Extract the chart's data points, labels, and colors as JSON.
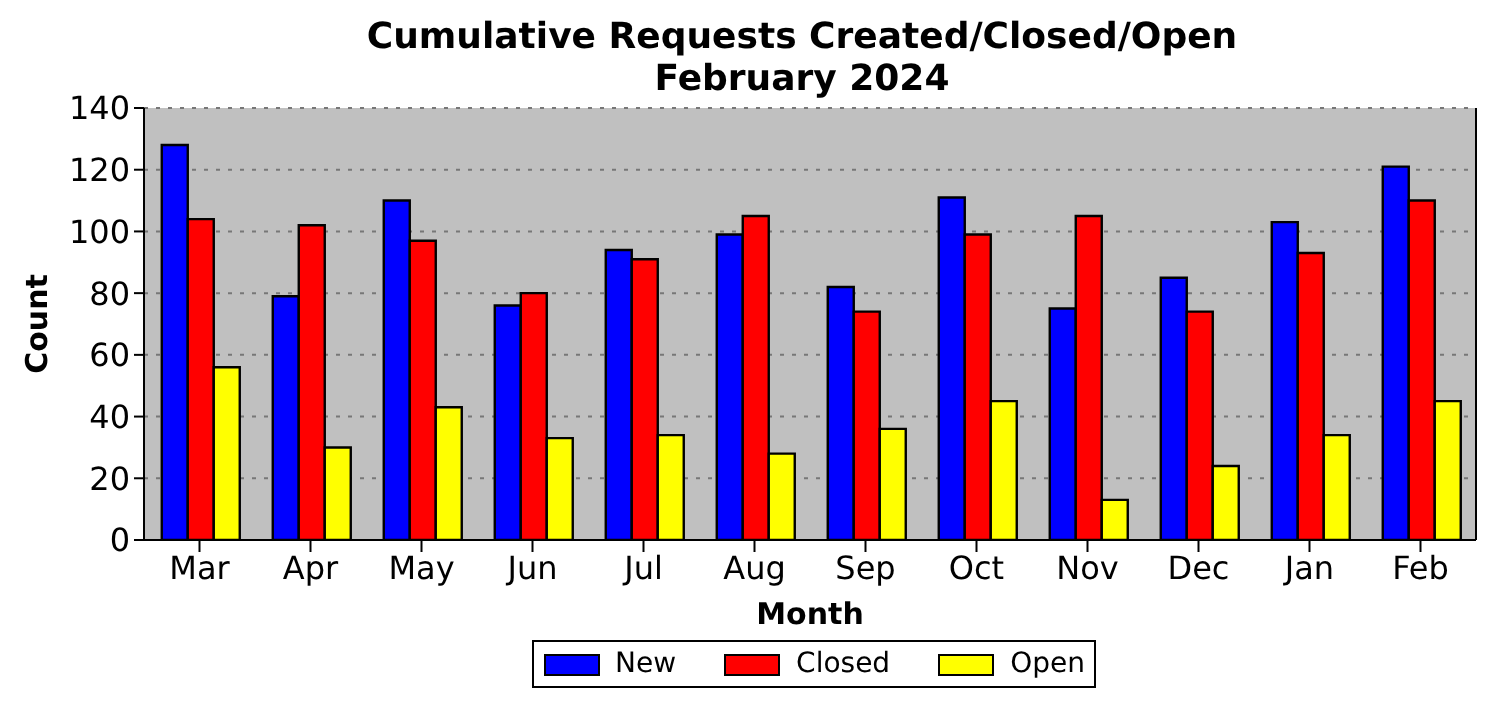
{
  "chart_data": {
    "type": "bar",
    "title": "Cumulative Requests Created/Closed/Open\nFebruary 2024",
    "xlabel": "Month",
    "ylabel": "Count",
    "categories": [
      "Mar",
      "Apr",
      "May",
      "Jun",
      "Jul",
      "Aug",
      "Sep",
      "Oct",
      "Nov",
      "Dec",
      "Jan",
      "Feb"
    ],
    "series": [
      {
        "name": "New",
        "color": "#0000ff",
        "values": [
          128,
          79,
          110,
          76,
          94,
          99,
          82,
          111,
          75,
          85,
          103,
          121
        ]
      },
      {
        "name": "Closed",
        "color": "#ff0000",
        "values": [
          104,
          102,
          97,
          80,
          91,
          105,
          74,
          99,
          105,
          74,
          93,
          110
        ]
      },
      {
        "name": "Open",
        "color": "#ffff00",
        "values": [
          56,
          30,
          43,
          33,
          34,
          28,
          36,
          45,
          13,
          24,
          34,
          45
        ]
      }
    ],
    "ylim": [
      0,
      140
    ],
    "yticks": [
      0,
      20,
      40,
      60,
      80,
      100,
      120,
      140
    ],
    "grid": "y",
    "legend": "bottom"
  }
}
